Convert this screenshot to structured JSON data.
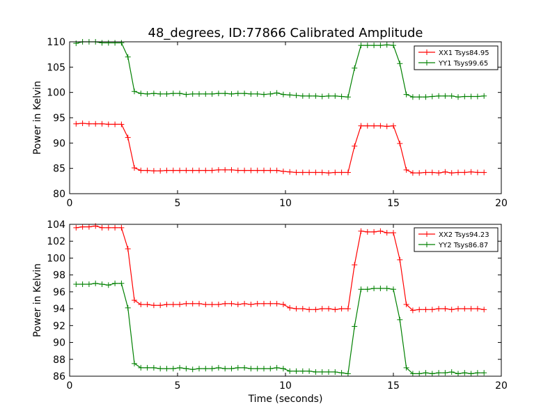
{
  "chart_data": [
    {
      "type": "line",
      "title": "48_degrees, ID:77866 Calibrated Amplitude",
      "xlabel": "",
      "ylabel": "Power in Kelvin",
      "xlim": [
        0,
        20
      ],
      "ylim": [
        80,
        110
      ],
      "xticks": [
        "0",
        "5",
        "10",
        "15",
        "20"
      ],
      "yticks": [
        "80",
        "85",
        "90",
        "95",
        "100",
        "105",
        "110"
      ],
      "legend_position": "top-right",
      "x": [
        0.3,
        0.6,
        0.9,
        1.2,
        1.5,
        1.8,
        2.1,
        2.4,
        2.7,
        3.0,
        3.3,
        3.6,
        3.9,
        4.2,
        4.5,
        4.8,
        5.1,
        5.4,
        5.7,
        6.0,
        6.3,
        6.6,
        6.9,
        7.2,
        7.5,
        7.8,
        8.1,
        8.4,
        8.7,
        9.0,
        9.3,
        9.6,
        9.9,
        10.2,
        10.5,
        10.8,
        11.1,
        11.4,
        11.7,
        12.0,
        12.3,
        12.6,
        12.9,
        13.2,
        13.5,
        13.8,
        14.1,
        14.4,
        14.7,
        15.0,
        15.3,
        15.6,
        15.9,
        16.2,
        16.5,
        16.8,
        17.1,
        17.4,
        17.7,
        18.0,
        18.3,
        18.6,
        18.9,
        19.2
      ],
      "series": [
        {
          "name": "XX1 Tsys84.95",
          "color": "#ff0000",
          "values": [
            93.8,
            93.9,
            93.8,
            93.8,
            93.8,
            93.7,
            93.7,
            93.7,
            91.1,
            85.1,
            84.6,
            84.6,
            84.5,
            84.5,
            84.6,
            84.6,
            84.6,
            84.6,
            84.6,
            84.6,
            84.6,
            84.6,
            84.7,
            84.7,
            84.7,
            84.6,
            84.6,
            84.6,
            84.6,
            84.6,
            84.6,
            84.6,
            84.4,
            84.3,
            84.2,
            84.2,
            84.2,
            84.2,
            84.2,
            84.1,
            84.2,
            84.2,
            84.2,
            89.4,
            93.4,
            93.4,
            93.4,
            93.4,
            93.3,
            93.4,
            89.9,
            84.7,
            84.1,
            84.1,
            84.2,
            84.2,
            84.1,
            84.3,
            84.1,
            84.2,
            84.2,
            84.3,
            84.2,
            84.2
          ]
        },
        {
          "name": "YY1 Tsys99.65",
          "color": "#008000",
          "values": [
            109.7,
            110.0,
            110.0,
            110.0,
            109.8,
            109.8,
            109.8,
            109.8,
            107.0,
            100.2,
            99.8,
            99.7,
            99.8,
            99.7,
            99.7,
            99.8,
            99.8,
            99.6,
            99.7,
            99.7,
            99.7,
            99.7,
            99.8,
            99.8,
            99.7,
            99.8,
            99.8,
            99.7,
            99.7,
            99.6,
            99.7,
            99.9,
            99.6,
            99.5,
            99.4,
            99.3,
            99.3,
            99.3,
            99.2,
            99.3,
            99.3,
            99.2,
            99.1,
            104.8,
            109.3,
            109.3,
            109.3,
            109.3,
            109.4,
            109.3,
            105.7,
            99.6,
            99.1,
            99.1,
            99.1,
            99.2,
            99.3,
            99.3,
            99.3,
            99.1,
            99.2,
            99.2,
            99.2,
            99.3
          ]
        }
      ]
    },
    {
      "type": "line",
      "title": "",
      "xlabel": "Time (seconds)",
      "ylabel": "Power in Kelvin",
      "xlim": [
        0,
        20
      ],
      "ylim": [
        86,
        104
      ],
      "xticks": [
        "0",
        "5",
        "10",
        "15",
        "20"
      ],
      "yticks": [
        "86",
        "88",
        "90",
        "92",
        "94",
        "96",
        "98",
        "100",
        "102",
        "104"
      ],
      "legend_position": "top-right",
      "x": [
        0.3,
        0.6,
        0.9,
        1.2,
        1.5,
        1.8,
        2.1,
        2.4,
        2.7,
        3.0,
        3.3,
        3.6,
        3.9,
        4.2,
        4.5,
        4.8,
        5.1,
        5.4,
        5.7,
        6.0,
        6.3,
        6.6,
        6.9,
        7.2,
        7.5,
        7.8,
        8.1,
        8.4,
        8.7,
        9.0,
        9.3,
        9.6,
        9.9,
        10.2,
        10.5,
        10.8,
        11.1,
        11.4,
        11.7,
        12.0,
        12.3,
        12.6,
        12.9,
        13.2,
        13.5,
        13.8,
        14.1,
        14.4,
        14.7,
        15.0,
        15.3,
        15.6,
        15.9,
        16.2,
        16.5,
        16.8,
        17.1,
        17.4,
        17.7,
        18.0,
        18.3,
        18.6,
        18.9,
        19.2
      ],
      "series": [
        {
          "name": "XX2 Tsys94.23",
          "color": "#ff0000",
          "values": [
            103.6,
            103.7,
            103.7,
            103.8,
            103.6,
            103.6,
            103.6,
            103.6,
            101.1,
            95.0,
            94.5,
            94.5,
            94.4,
            94.4,
            94.5,
            94.5,
            94.5,
            94.6,
            94.6,
            94.6,
            94.5,
            94.5,
            94.5,
            94.6,
            94.6,
            94.5,
            94.6,
            94.5,
            94.6,
            94.6,
            94.6,
            94.6,
            94.5,
            94.1,
            94.0,
            94.0,
            93.9,
            93.9,
            94.0,
            94.0,
            93.9,
            94.0,
            94.0,
            99.2,
            103.2,
            103.1,
            103.1,
            103.2,
            103.0,
            103.0,
            99.8,
            94.5,
            93.8,
            93.9,
            93.9,
            93.9,
            94.0,
            94.0,
            93.9,
            94.0,
            94.0,
            94.0,
            94.0,
            93.9
          ]
        },
        {
          "name": "YY2 Tsys86.87",
          "color": "#008000",
          "values": [
            96.9,
            96.9,
            96.9,
            97.0,
            96.9,
            96.8,
            97.0,
            97.0,
            94.1,
            87.5,
            87.0,
            87.0,
            87.0,
            86.9,
            86.9,
            86.9,
            87.0,
            86.9,
            86.8,
            86.9,
            86.9,
            86.9,
            87.0,
            86.9,
            86.9,
            87.0,
            87.0,
            86.9,
            86.9,
            86.9,
            86.9,
            87.0,
            86.9,
            86.6,
            86.6,
            86.6,
            86.6,
            86.5,
            86.5,
            86.5,
            86.5,
            86.4,
            86.3,
            91.9,
            96.3,
            96.3,
            96.4,
            96.4,
            96.4,
            96.3,
            92.7,
            87.0,
            86.3,
            86.3,
            86.4,
            86.3,
            86.4,
            86.4,
            86.5,
            86.3,
            86.4,
            86.3,
            86.4,
            86.4
          ]
        }
      ]
    }
  ]
}
